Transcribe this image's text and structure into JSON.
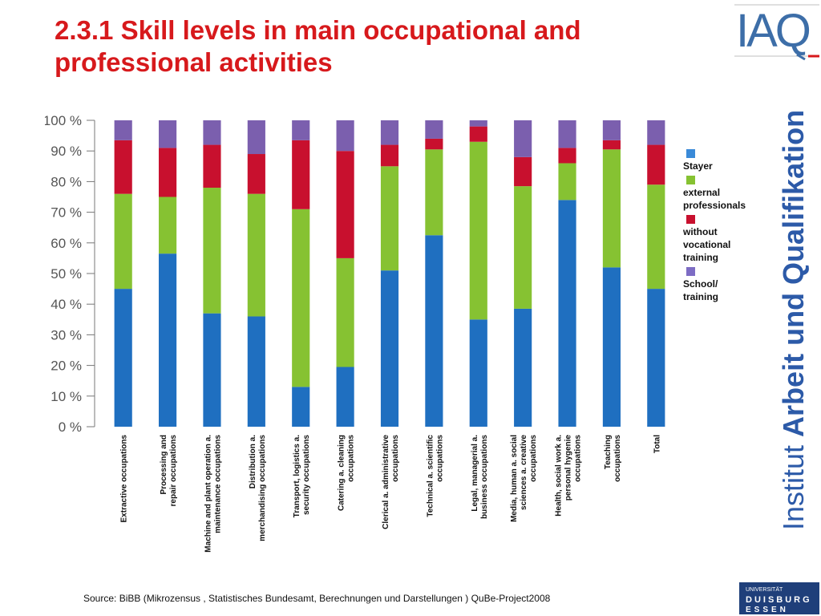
{
  "title": "2.3.1 Skill levels in main occupational and professional activities",
  "logo": {
    "text": "IAQ"
  },
  "institute": {
    "prefix": "Institut ",
    "name": "Arbeit und Qualifikation"
  },
  "university": {
    "line1": "UNIVERSITÄT",
    "line2": "DUISBURG",
    "line3": "ESSEN"
  },
  "source": "Source:  BiBB (Mikrozensus , Statistisches Bundesamt,  Berechnungen und Darstellungen ) QuBe-Project2008",
  "chart_data": {
    "type": "bar",
    "stacked": true,
    "ylim": [
      0,
      100
    ],
    "yticks": [
      "0 %",
      "10 %",
      "20 %",
      "30 %",
      "40 %",
      "50 %",
      "60 %",
      "70 %",
      "80 %",
      "90 %",
      "100 %"
    ],
    "grid": false,
    "legend_position": "right",
    "categories": [
      "Extractive occupations",
      "Processing and repair occupations",
      "Machine and plant operation a. maintenance occupations",
      "Distribution a. merchandising occupations",
      "Transport, logistics a. security occupations",
      "Catering a. cleaning occupations",
      "Clerical a. administrative occupations",
      "Technical a. scientific occupations",
      "Legal, managerial a. business occupations",
      "Media, human a. social sciences a. creative occupations",
      "Health, social work a. personal hygenie occupations",
      "Teaching occupations",
      "Total"
    ],
    "category_label_lines": [
      [
        "Extractive occupations"
      ],
      [
        "Processing and",
        "repair occupations"
      ],
      [
        "Machine and plant operation a.",
        "maintenance occupations"
      ],
      [
        "Distribution a.",
        "merchandising occupations"
      ],
      [
        "Transport, logistics a.",
        "security occupations"
      ],
      [
        "Catering a. cleaning",
        "occupations"
      ],
      [
        "Clerical a. administrative",
        "occupations"
      ],
      [
        "Technical a. scientific",
        "occupations"
      ],
      [
        "Legal, managerial a.",
        "business occupations"
      ],
      [
        "Media, human a. social",
        "sciences a. creative",
        "occupations"
      ],
      [
        "Health, social work a.",
        "personal hygenie",
        "occupations"
      ],
      [
        "Teaching",
        "occupations"
      ],
      [
        "Total"
      ]
    ],
    "series": [
      {
        "name": "Stayer",
        "color": "#1f6fc0",
        "values": [
          45,
          56.5,
          37,
          36,
          13,
          19.5,
          51,
          62.5,
          35,
          38.5,
          74,
          52,
          45
        ]
      },
      {
        "name": "external professionals",
        "color": "#86c232",
        "values": [
          31,
          18.5,
          41,
          40,
          58,
          35.5,
          34,
          28,
          58,
          40,
          12,
          38.5,
          34
        ]
      },
      {
        "name": "without vocational training",
        "color": "#c8102e",
        "values": [
          17.5,
          16,
          14,
          13,
          22.5,
          35,
          7,
          3.5,
          5,
          9.5,
          5,
          3,
          13
        ]
      },
      {
        "name": "School/ training",
        "color": "#7b5fae",
        "values": [
          6.5,
          9,
          8,
          11,
          6.5,
          10,
          8,
          6,
          2,
          12,
          9,
          6.5,
          8
        ]
      }
    ]
  },
  "legend": [
    {
      "color": "#3a8ad8",
      "lines": [
        "Stayer"
      ]
    },
    {
      "color": "#86c232",
      "lines": [
        "external",
        "professionals"
      ]
    },
    {
      "color": "#c8102e",
      "lines": [
        "without",
        "vocational",
        "training"
      ]
    },
    {
      "color": "#7d6cc4",
      "lines": [
        "School/",
        "training"
      ]
    }
  ]
}
